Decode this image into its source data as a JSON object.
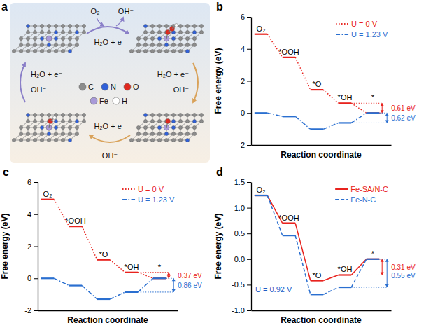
{
  "diagram": {
    "title": "a",
    "steps": [
      {
        "in": [
          "O₂",
          "H₂O + e⁻"
        ],
        "out": [
          "OH⁻"
        ]
      },
      {
        "in": [
          "H₂O + e⁻"
        ],
        "out": [
          "OH⁻"
        ]
      },
      {
        "in": [
          "H₂O + e⁻"
        ],
        "out": [
          "OH⁻"
        ]
      },
      {
        "in": [
          "H₂O + e⁻"
        ],
        "out": [
          "OH⁻"
        ]
      }
    ],
    "atoms": [
      {
        "symbol": "C",
        "color": "#8c8c8c"
      },
      {
        "symbol": "N",
        "color": "#3060d8"
      },
      {
        "symbol": "O",
        "color": "#e0281e"
      },
      {
        "symbol": "Fe",
        "color": "#a89ad8"
      },
      {
        "symbol": "H",
        "color": "#ffffff"
      }
    ]
  },
  "chart_data": [
    {
      "type": "step",
      "title": "b",
      "y_label": "Free energy (eV)",
      "x_label": "Reaction coordinate",
      "categories": [
        "O₂",
        "*OOH",
        "*O",
        "*OH",
        "*"
      ],
      "ylim": [
        -2,
        6
      ],
      "yticks": [
        -2,
        0,
        2,
        4,
        6
      ],
      "legend": "top-right",
      "tick_labels": "y",
      "series": [
        {
          "name": "U = 0 V",
          "color": "#e8231e",
          "line_style": "dotted",
          "values": [
            4.92,
            3.47,
            1.45,
            0.61,
            0
          ],
          "annotation": "0.61 eV"
        },
        {
          "name": "U = 1.23 V",
          "color": "#2a6fd0",
          "line_style": "dashdot",
          "values": [
            0,
            -0.22,
            -1.01,
            -0.62,
            0
          ],
          "annotation": "0.62 eV"
        }
      ]
    },
    {
      "type": "step",
      "title": "c",
      "y_label": "Free energy (eV)",
      "x_label": "Reaction coordinate",
      "categories": [
        "O₂",
        "*OOH",
        "*O",
        "*OH",
        "*"
      ],
      "ylim": [
        -2,
        6
      ],
      "yticks": [
        -2,
        0,
        2,
        4,
        6
      ],
      "legend": "top-right",
      "tick_labels": "y",
      "series": [
        {
          "name": "U = 0 V",
          "color": "#e8231e",
          "line_style": "dotted",
          "values": [
            4.92,
            3.24,
            1.16,
            0.37,
            0
          ],
          "annotation": "0.37 eV"
        },
        {
          "name": "U = 1.23 V",
          "color": "#2a6fd0",
          "line_style": "dashdot",
          "values": [
            0,
            -0.45,
            -1.3,
            -0.86,
            0
          ],
          "annotation": "0.86 eV"
        }
      ]
    },
    {
      "type": "step",
      "title": "d",
      "y_label": "Free energy (eV)",
      "x_label": "Reaction coordinate",
      "categories": [
        "O₂",
        "*OOH",
        "*O",
        "*OH",
        "*"
      ],
      "ylim": [
        -1,
        1.5
      ],
      "yticks": [
        {
          "value": -1,
          "label": "-1.0"
        },
        -0.5,
        {
          "value": 0,
          "label": "0.0"
        },
        0.5,
        {
          "value": 1,
          "label": "1.0"
        },
        1.5
      ],
      "legend": "top-right",
      "tick_labels": "y",
      "note": "U = 0.92 V",
      "series": [
        {
          "name": "Fe-SA/N-C",
          "color": "#e8231e",
          "line_style": "solid",
          "values": [
            1.24,
            0.7,
            -0.42,
            -0.31,
            0
          ],
          "annotation": "0.31 eV"
        },
        {
          "name": "Fe-N-C",
          "color": "#2a6fd0",
          "line_style": "dashed",
          "values": [
            1.24,
            0.46,
            -0.69,
            -0.55,
            0
          ],
          "annotation": "0.55 eV"
        }
      ]
    }
  ]
}
